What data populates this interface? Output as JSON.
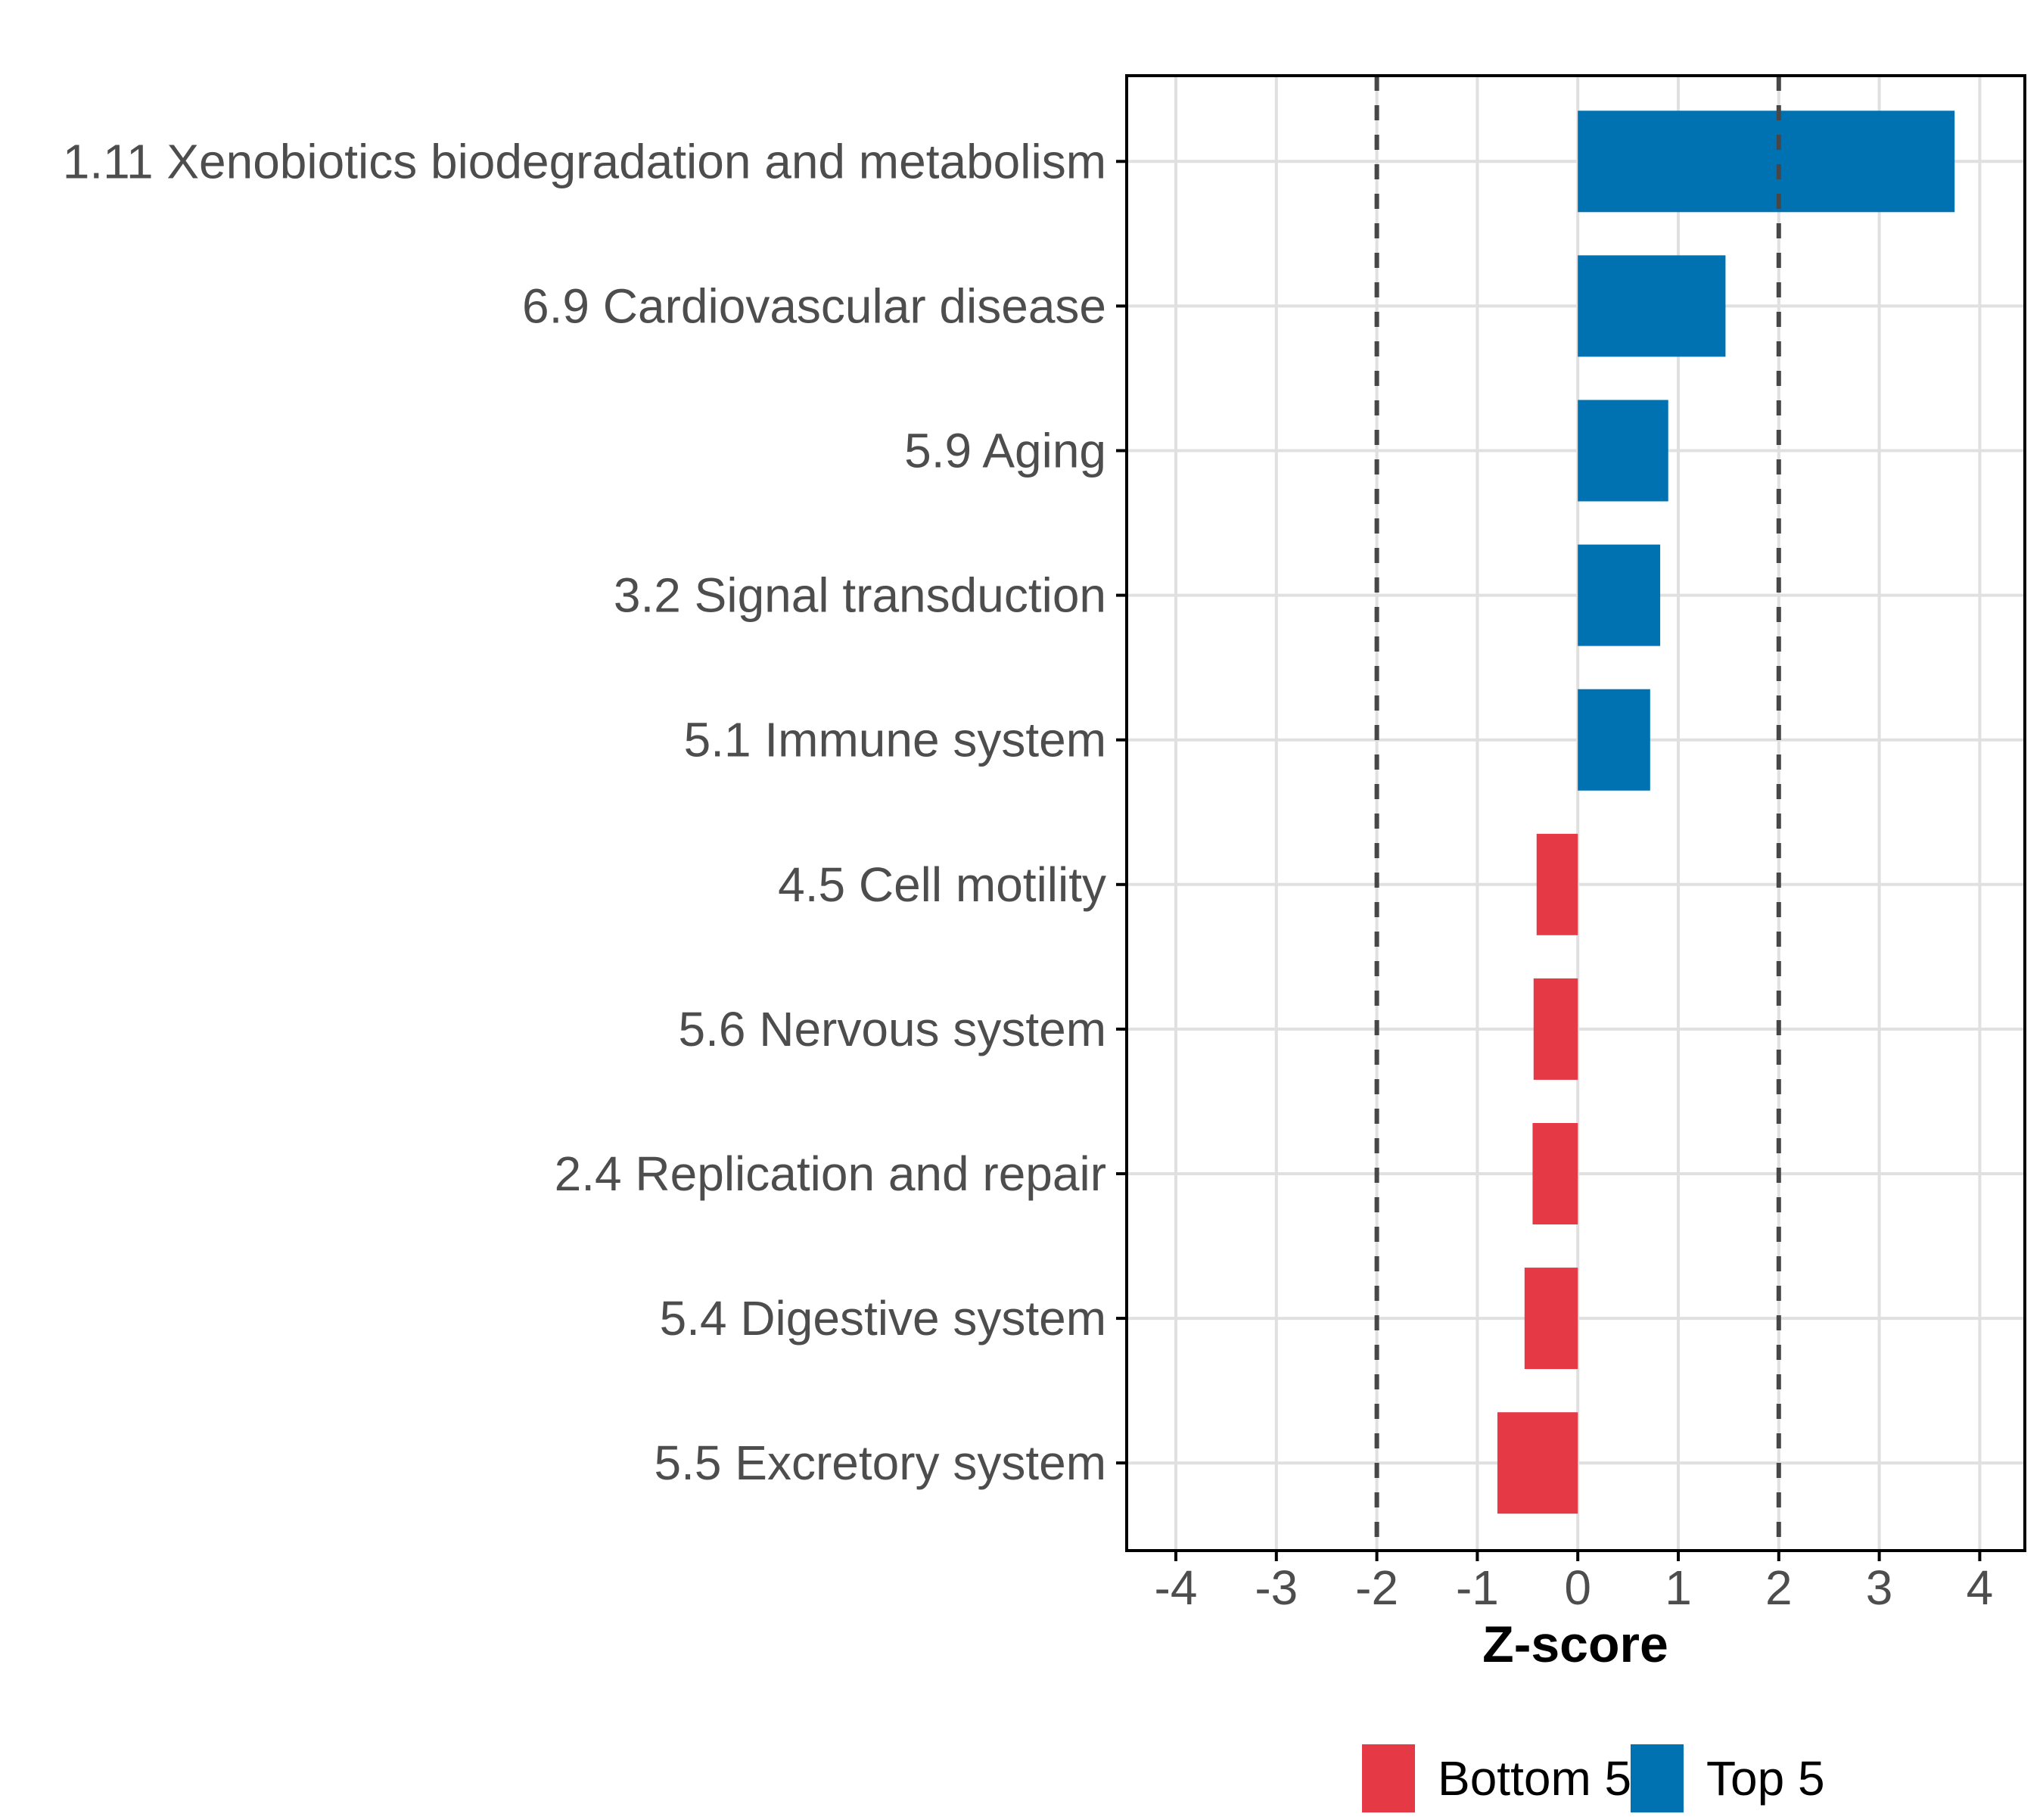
{
  "chart_data": {
    "type": "bar",
    "orientation": "horizontal",
    "title": "",
    "xlabel": "Z-score",
    "ylabel": "",
    "categories": [
      "1.11 Xenobiotics biodegradation and metabolism",
      "6.9 Cardiovascular disease",
      "5.9 Aging",
      "3.2 Signal transduction",
      "5.1 Immune system",
      "4.5 Cell motility",
      "5.6 Nervous system",
      "2.4 Replication and repair",
      "5.4 Digestive system",
      "5.5 Excretory system"
    ],
    "values": [
      3.75,
      1.47,
      0.9,
      0.82,
      0.72,
      -0.41,
      -0.44,
      -0.45,
      -0.53,
      -0.8
    ],
    "groups": [
      "Top 5",
      "Top 5",
      "Top 5",
      "Top 5",
      "Top 5",
      "Bottom 5",
      "Bottom 5",
      "Bottom 5",
      "Bottom 5",
      "Bottom 5"
    ],
    "xlim": [
      -4.49,
      4.45
    ],
    "xticks": [
      -4,
      -3,
      -2,
      -1,
      0,
      1,
      2,
      3,
      4
    ],
    "reference_lines": [
      -2,
      2
    ],
    "grid": "major-only",
    "legend": {
      "position": "bottom",
      "entries": [
        {
          "label": "Bottom 5",
          "color": "#E63946"
        },
        {
          "label": "Top 5",
          "color": "#0072B2"
        }
      ]
    },
    "colors": {
      "Top 5": "#0072B2",
      "Bottom 5": "#E63946",
      "grid": "#E0E0E0",
      "axis_text": "#4D4D4D",
      "reference_line": "#474747",
      "panel_border": "#000000",
      "tick_mark": "#000000"
    }
  }
}
